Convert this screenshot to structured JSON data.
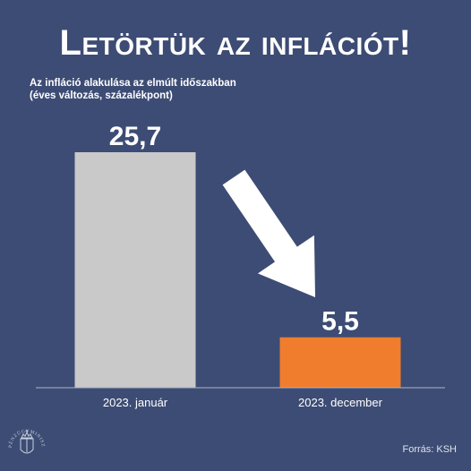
{
  "headline": "Letörtük az inflációt!",
  "subtitle": {
    "line1": "Az infláció alakulása az elmúlt időszakban",
    "line2": "(éves változás, százalékpont)"
  },
  "source": "Forrás: KSH",
  "logo": {
    "ring_text": "PÉNZÜGYMINISZTÉRIUM",
    "icon": "hungarian-coat-of-arms-icon"
  },
  "colors": {
    "background": "#3d4c74",
    "bar_january": "#c9c9c9",
    "bar_december": "#ef7d2d",
    "arrow": "#ffffff"
  },
  "chart_data": {
    "type": "bar",
    "categories": [
      "2023. január",
      "2023. december"
    ],
    "values": [
      25.7,
      5.5
    ],
    "value_labels": [
      "25,7",
      "5,5"
    ],
    "ylim": [
      0,
      25.7
    ],
    "grid": false,
    "annotations": [
      "downward-arrow"
    ]
  }
}
